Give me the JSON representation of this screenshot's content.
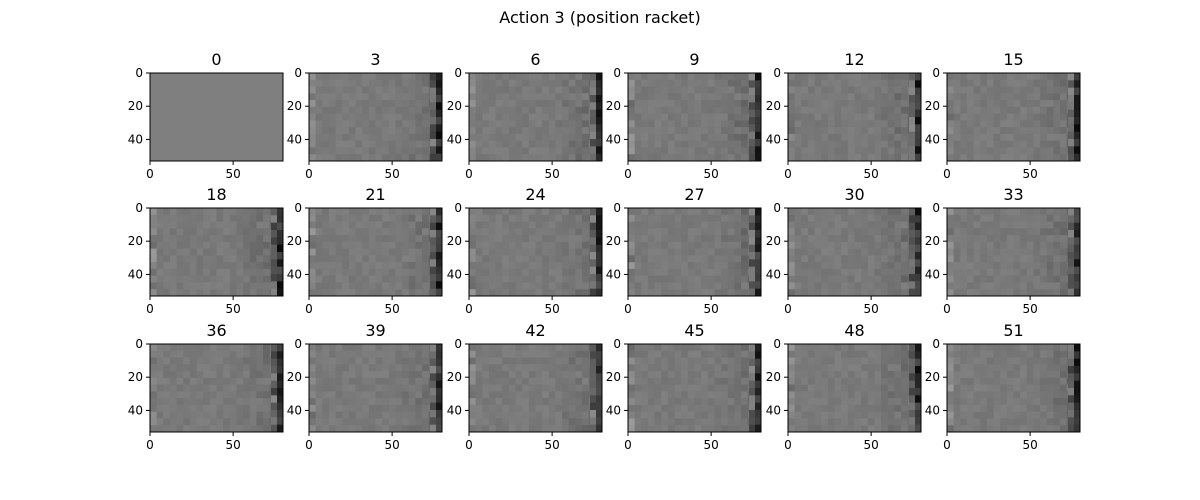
{
  "figure": {
    "suptitle": "Action 3 (position racket)"
  },
  "chart_data": {
    "type": "heatmap",
    "title": "Action 3 (position racket)",
    "colormap": "gray",
    "image_shape": [
      53,
      80
    ],
    "grid": false,
    "layout": {
      "rows": 3,
      "cols": 6
    },
    "xticks": [
      0,
      50
    ],
    "yticks": [
      0,
      20,
      40
    ],
    "xlim": [
      0,
      80
    ],
    "ylim": [
      53,
      0
    ],
    "panels": [
      {
        "title": "0",
        "uniform": true
      },
      {
        "title": "3"
      },
      {
        "title": "6"
      },
      {
        "title": "9"
      },
      {
        "title": "12"
      },
      {
        "title": "15"
      },
      {
        "title": "18"
      },
      {
        "title": "21"
      },
      {
        "title": "24"
      },
      {
        "title": "27"
      },
      {
        "title": "30"
      },
      {
        "title": "33"
      },
      {
        "title": "36"
      },
      {
        "title": "39"
      },
      {
        "title": "42"
      },
      {
        "title": "45"
      },
      {
        "title": "48"
      },
      {
        "title": "51"
      }
    ]
  }
}
